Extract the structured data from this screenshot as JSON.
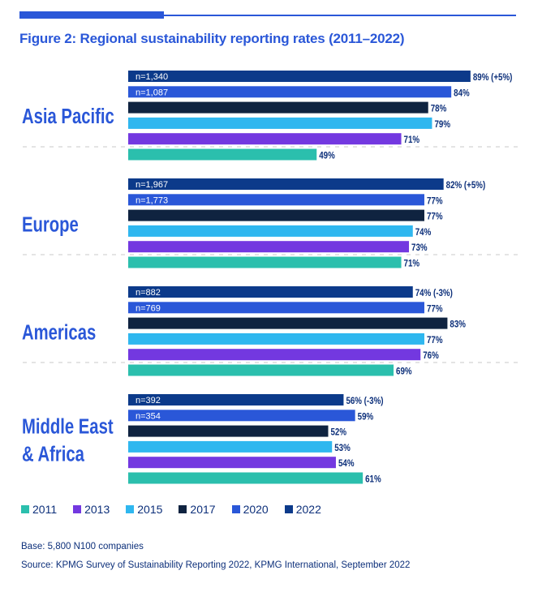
{
  "title": "Figure 2: Regional sustainability reporting rates (2011–2022)",
  "colors": {
    "accent": "#2a57d8",
    "label_text": "#0c2f7a",
    "separator": "#c8c8c8"
  },
  "chart_data": {
    "type": "bar",
    "orientation": "horizontal",
    "title": "Figure 2: Regional sustainability reporting rates (2011–2022)",
    "xlabel": "",
    "ylabel": "",
    "unit": "%",
    "xlim": [
      0,
      100
    ],
    "grid": false,
    "legend_position": "bottom-left",
    "series_order_in_group": [
      "2022",
      "2020",
      "2017",
      "2015",
      "2013",
      "2011"
    ],
    "series": [
      {
        "name": "2011",
        "color": "#2bbfad"
      },
      {
        "name": "2013",
        "color": "#7338e0"
      },
      {
        "name": "2015",
        "color": "#2fb7ef"
      },
      {
        "name": "2017",
        "color": "#0f2340"
      },
      {
        "name": "2020",
        "color": "#2a57d8"
      },
      {
        "name": "2022",
        "color": "#0c3a8a"
      }
    ],
    "groups": [
      {
        "region": "Asia Pacific",
        "label_lines": [
          "Asia Pacific"
        ],
        "bars": [
          {
            "year": "2022",
            "value": 89,
            "label": "89% (+5%)",
            "n": "n=1,340"
          },
          {
            "year": "2020",
            "value": 84,
            "label": "84%",
            "n": "n=1,087"
          },
          {
            "year": "2017",
            "value": 78,
            "label": "78%",
            "n": ""
          },
          {
            "year": "2015",
            "value": 79,
            "label": "79%",
            "n": ""
          },
          {
            "year": "2013",
            "value": 71,
            "label": "71%",
            "n": ""
          },
          {
            "year": "2011",
            "value": 49,
            "label": "49%",
            "n": ""
          }
        ]
      },
      {
        "region": "Europe",
        "label_lines": [
          "Europe"
        ],
        "bars": [
          {
            "year": "2022",
            "value": 82,
            "label": "82% (+5%)",
            "n": "n=1,967"
          },
          {
            "year": "2020",
            "value": 77,
            "label": "77%",
            "n": "n=1,773"
          },
          {
            "year": "2017",
            "value": 77,
            "label": "77%",
            "n": ""
          },
          {
            "year": "2015",
            "value": 74,
            "label": "74%",
            "n": ""
          },
          {
            "year": "2013",
            "value": 73,
            "label": "73%",
            "n": ""
          },
          {
            "year": "2011",
            "value": 71,
            "label": "71%",
            "n": ""
          }
        ]
      },
      {
        "region": "Americas",
        "label_lines": [
          "Americas"
        ],
        "bars": [
          {
            "year": "2022",
            "value": 74,
            "label": "74% (-3%)",
            "n": "n=882"
          },
          {
            "year": "2020",
            "value": 77,
            "label": "77%",
            "n": "n=769"
          },
          {
            "year": "2017",
            "value": 83,
            "label": "83%",
            "n": ""
          },
          {
            "year": "2015",
            "value": 77,
            "label": "77%",
            "n": ""
          },
          {
            "year": "2013",
            "value": 76,
            "label": "76%",
            "n": ""
          },
          {
            "year": "2011",
            "value": 69,
            "label": "69%",
            "n": ""
          }
        ]
      },
      {
        "region": "Middle East & Africa",
        "label_lines": [
          "Middle East",
          "& Africa"
        ],
        "bars": [
          {
            "year": "2022",
            "value": 56,
            "label": "56% (-3%)",
            "n": "n=392"
          },
          {
            "year": "2020",
            "value": 59,
            "label": "59%",
            "n": "n=354"
          },
          {
            "year": "2017",
            "value": 52,
            "label": "52%",
            "n": ""
          },
          {
            "year": "2015",
            "value": 53,
            "label": "53%",
            "n": ""
          },
          {
            "year": "2013",
            "value": 54,
            "label": "54%",
            "n": ""
          },
          {
            "year": "2011",
            "value": 61,
            "label": "61%",
            "n": ""
          }
        ]
      }
    ]
  },
  "legend": [
    {
      "label": "2011",
      "color": "#2bbfad"
    },
    {
      "label": "2013",
      "color": "#7338e0"
    },
    {
      "label": "2015",
      "color": "#2fb7ef"
    },
    {
      "label": "2017",
      "color": "#0f2340"
    },
    {
      "label": "2020",
      "color": "#2a57d8"
    },
    {
      "label": "2022",
      "color": "#0c3a8a"
    }
  ],
  "footnotes": {
    "base": "Base: 5,800 N100 companies",
    "source": "Source: KPMG Survey of Sustainability Reporting 2022, KPMG International, September 2022"
  }
}
